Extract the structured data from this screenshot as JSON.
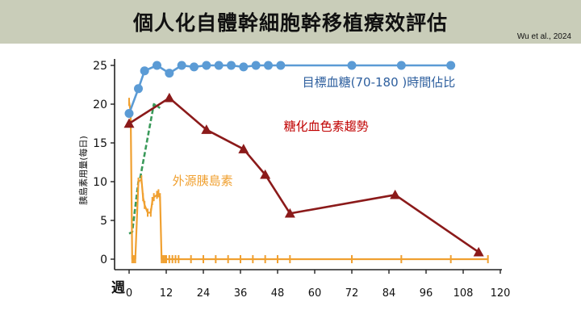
{
  "slide": {
    "title": "個人化自體幹細胞幹移植療效評估",
    "citation": "Wu et al., 2024"
  },
  "chart_data": {
    "type": "line",
    "title": "",
    "xlabel": "週",
    "ylabel": "胰島素用量(每日)",
    "xlim": [
      0,
      120
    ],
    "ylim": [
      0,
      25
    ],
    "xticks": [
      0,
      12,
      24,
      36,
      48,
      60,
      72,
      84,
      96,
      108,
      120
    ],
    "yticks": [
      0,
      5,
      10,
      15,
      20,
      25
    ],
    "grid": false,
    "series": [
      {
        "name": "目標血糖(70-180 )時間佔比",
        "color": "#5b9bd5",
        "marker": "circle",
        "x": [
          0,
          3,
          5,
          9,
          13,
          17,
          21,
          25,
          29,
          33,
          37,
          41,
          45,
          49,
          72,
          88,
          104
        ],
        "y": [
          18.8,
          22,
          24.3,
          25,
          24,
          25,
          24.8,
          25,
          25,
          25,
          24.8,
          25,
          25,
          25,
          25,
          25,
          25
        ]
      },
      {
        "name": "糖化血色素趨勢",
        "color": "#8b1a1a",
        "marker": "triangle",
        "x": [
          0,
          13,
          25,
          37,
          44,
          52,
          86,
          113
        ],
        "y": [
          17.5,
          20.8,
          16.7,
          14.2,
          10.9,
          5.9,
          8.3,
          0.9
        ]
      },
      {
        "name": "外源胰島素",
        "color": "#f0a030",
        "marker": "tick",
        "x": [
          0,
          0.5,
          1,
          1.5,
          2,
          3,
          4,
          4.5,
          5,
          6,
          7,
          7.5,
          8,
          9,
          9.5,
          10,
          10.5,
          11,
          11.5,
          12,
          13,
          14,
          15,
          16,
          20,
          24,
          28,
          32,
          36,
          40,
          44,
          48,
          52,
          72,
          88,
          104,
          116
        ],
        "y": [
          20.3,
          19,
          0,
          0,
          0,
          10,
          10.3,
          8,
          7,
          6,
          6,
          7.5,
          8,
          8.3,
          8.5,
          8,
          0,
          0,
          0,
          0,
          0,
          0,
          0,
          0,
          0,
          0,
          0,
          0,
          0,
          0,
          0,
          0,
          0,
          0,
          0,
          0,
          0
        ]
      },
      {
        "name": "",
        "color": "#3a9a5a",
        "marker": "none",
        "x": [
          0,
          1,
          3,
          3.5,
          8,
          10
        ],
        "y": [
          3.3,
          3.5,
          10,
          10.3,
          20,
          19.5
        ]
      }
    ],
    "annotations": [
      {
        "text": "目標血糖(70-180 )時間佔比",
        "color": "#2e5f9e",
        "x": 56,
        "y": 22.3
      },
      {
        "text": "糖化血色素趨勢",
        "color": "#c00000",
        "x": 50,
        "y": 16.6
      },
      {
        "text": "外源胰島素",
        "color": "#f0a030",
        "x": 14,
        "y": 9.6
      }
    ]
  }
}
